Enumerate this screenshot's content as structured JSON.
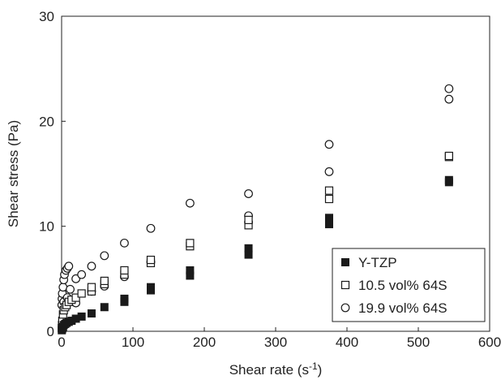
{
  "chart_data": {
    "type": "scatter",
    "xlabel": "Shear rate (s",
    "xlabel_sup": "-1",
    "xlabel_end": ")",
    "ylabel": "Shear stress (Pa)",
    "xlim": [
      0,
      600
    ],
    "ylim": [
      0,
      30
    ],
    "xticks": [
      0,
      100,
      200,
      300,
      400,
      500,
      600
    ],
    "yticks": [
      0,
      10,
      20,
      30
    ],
    "grid": false,
    "legend_position": "bottom-right",
    "series": [
      {
        "name": "Y-TZP",
        "marker": "filled-square",
        "color": "#1a1a1a",
        "points": [
          [
            0.3,
            0.1
          ],
          [
            0.6,
            0.2
          ],
          [
            1,
            0.3
          ],
          [
            2,
            0.4
          ],
          [
            3,
            0.6
          ],
          [
            5,
            0.7
          ],
          [
            7,
            0.8
          ],
          [
            10,
            0.9
          ],
          [
            14,
            1.0
          ],
          [
            20,
            1.2
          ],
          [
            28,
            1.4
          ],
          [
            42,
            1.7
          ],
          [
            60,
            2.3
          ],
          [
            88,
            2.8
          ],
          [
            88,
            3.1
          ],
          [
            125,
            3.9
          ],
          [
            125,
            4.2
          ],
          [
            180,
            5.3
          ],
          [
            180,
            5.8
          ],
          [
            262,
            7.3
          ],
          [
            262,
            7.9
          ],
          [
            375,
            10.2
          ],
          [
            375,
            10.8
          ],
          [
            543,
            14.2
          ],
          [
            543,
            14.4
          ]
        ]
      },
      {
        "name": "10.5 vol% 64S",
        "marker": "open-square",
        "color": "#1a1a1a",
        "points": [
          [
            0.3,
            0.3
          ],
          [
            0.6,
            0.6
          ],
          [
            1,
            1.0
          ],
          [
            2,
            1.6
          ],
          [
            3,
            2.0
          ],
          [
            5,
            2.3
          ],
          [
            7,
            2.5
          ],
          [
            10,
            2.8
          ],
          [
            14,
            3.0
          ],
          [
            20,
            3.2
          ],
          [
            28,
            3.6
          ],
          [
            42,
            3.8
          ],
          [
            42,
            4.2
          ],
          [
            60,
            4.5
          ],
          [
            60,
            4.8
          ],
          [
            88,
            5.4
          ],
          [
            88,
            5.8
          ],
          [
            125,
            6.5
          ],
          [
            125,
            6.8
          ],
          [
            180,
            8.1
          ],
          [
            180,
            8.4
          ],
          [
            262,
            10.1
          ],
          [
            262,
            10.6
          ],
          [
            375,
            12.6
          ],
          [
            375,
            13.4
          ],
          [
            543,
            16.6
          ],
          [
            543,
            16.7
          ]
        ]
      },
      {
        "name": "19.9 vol% 64S",
        "marker": "open-circle",
        "color": "#1a1a1a",
        "points": [
          [
            0.3,
            2.5
          ],
          [
            0.6,
            3.1
          ],
          [
            1,
            3.6
          ],
          [
            2,
            4.2
          ],
          [
            3,
            4.9
          ],
          [
            4,
            5.4
          ],
          [
            6,
            5.8
          ],
          [
            8,
            6.0
          ],
          [
            10,
            6.2
          ],
          [
            12,
            4.0
          ],
          [
            20,
            5.0
          ],
          [
            28,
            5.4
          ],
          [
            42,
            6.2
          ],
          [
            60,
            7.2
          ],
          [
            88,
            8.4
          ],
          [
            125,
            9.8
          ],
          [
            180,
            12.2
          ],
          [
            262,
            10.4
          ],
          [
            262,
            11.0
          ],
          [
            262,
            13.1
          ],
          [
            375,
            15.2
          ],
          [
            375,
            17.8
          ],
          [
            543,
            22.1
          ],
          [
            543,
            23.1
          ],
          [
            3,
            2.8
          ],
          [
            8,
            3.2
          ],
          [
            20,
            2.7
          ],
          [
            42,
            3.8
          ],
          [
            60,
            4.3
          ],
          [
            88,
            5.2
          ],
          [
            125,
            6.6
          ]
        ]
      }
    ]
  }
}
